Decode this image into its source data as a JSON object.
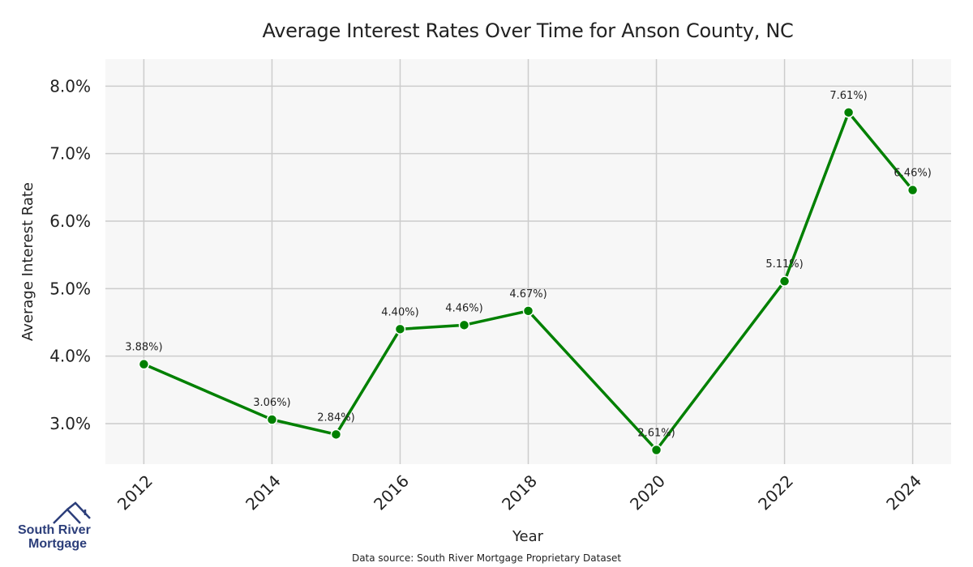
{
  "chart_data": {
    "type": "line",
    "title": "Average Interest Rates Over Time for Anson County, NC",
    "xlabel": "Year",
    "ylabel": "Average Interest Rate",
    "x": [
      2012,
      2014,
      2015,
      2016,
      2017,
      2018,
      2020,
      2022,
      2023,
      2024
    ],
    "series": [
      {
        "values": [
          3.88,
          3.06,
          2.84,
          4.4,
          4.46,
          4.67,
          2.61,
          5.11,
          7.61,
          6.46
        ],
        "data_labels": [
          "3.88%)",
          "3.06%)",
          "2.84%)",
          "4.40%)",
          "4.46%)",
          "4.67%)",
          "2.61%)",
          "5.11%)",
          "7.61%)",
          "6.46%)"
        ],
        "color": "#008000"
      }
    ],
    "xticks": [
      "2012",
      "2014",
      "2016",
      "2018",
      "2020",
      "2022",
      "2024"
    ],
    "yticks": [
      "3.0%",
      "4.0%",
      "5.0%",
      "6.0%",
      "7.0%",
      "8.0%"
    ],
    "xlim": [
      2011.4,
      2024.6
    ],
    "ylim": [
      2.4,
      8.4
    ],
    "grid": true,
    "background": "#f7f7f7",
    "grid_color": "#cccccc"
  },
  "source_note": "Data source: South River Mortgage Proprietary Dataset",
  "logo": {
    "line1": "South River",
    "line2": "Mortgage",
    "color": "#2c3e7a",
    "icon": "house-icon"
  }
}
